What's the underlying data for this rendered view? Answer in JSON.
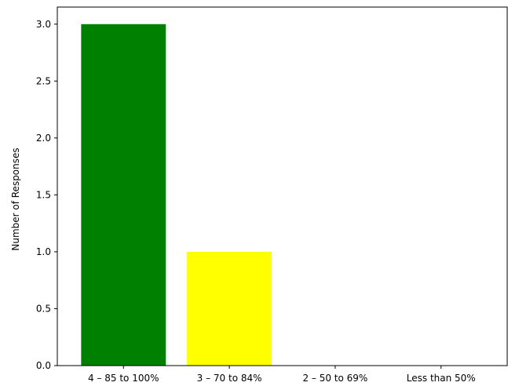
{
  "chart_data": {
    "type": "bar",
    "categories": [
      "4 – 85 to 100%",
      "3 – 70 to 84%",
      "2 – 50 to 69%",
      "Less than 50%"
    ],
    "values": [
      3,
      1,
      0,
      0
    ],
    "colors": [
      "#008000",
      "#ffff00",
      "#ff0000",
      "#ff0000"
    ],
    "title": "",
    "xlabel": "",
    "ylabel": "Number of Responses",
    "ylim": [
      0,
      3.15
    ],
    "yticks": [
      0.0,
      0.5,
      1.0,
      1.5,
      2.0,
      2.5,
      3.0
    ],
    "ytick_labels": [
      "0.0",
      "0.5",
      "1.0",
      "1.5",
      "2.0",
      "2.5",
      "3.0"
    ],
    "grid": false,
    "legend": "none"
  }
}
